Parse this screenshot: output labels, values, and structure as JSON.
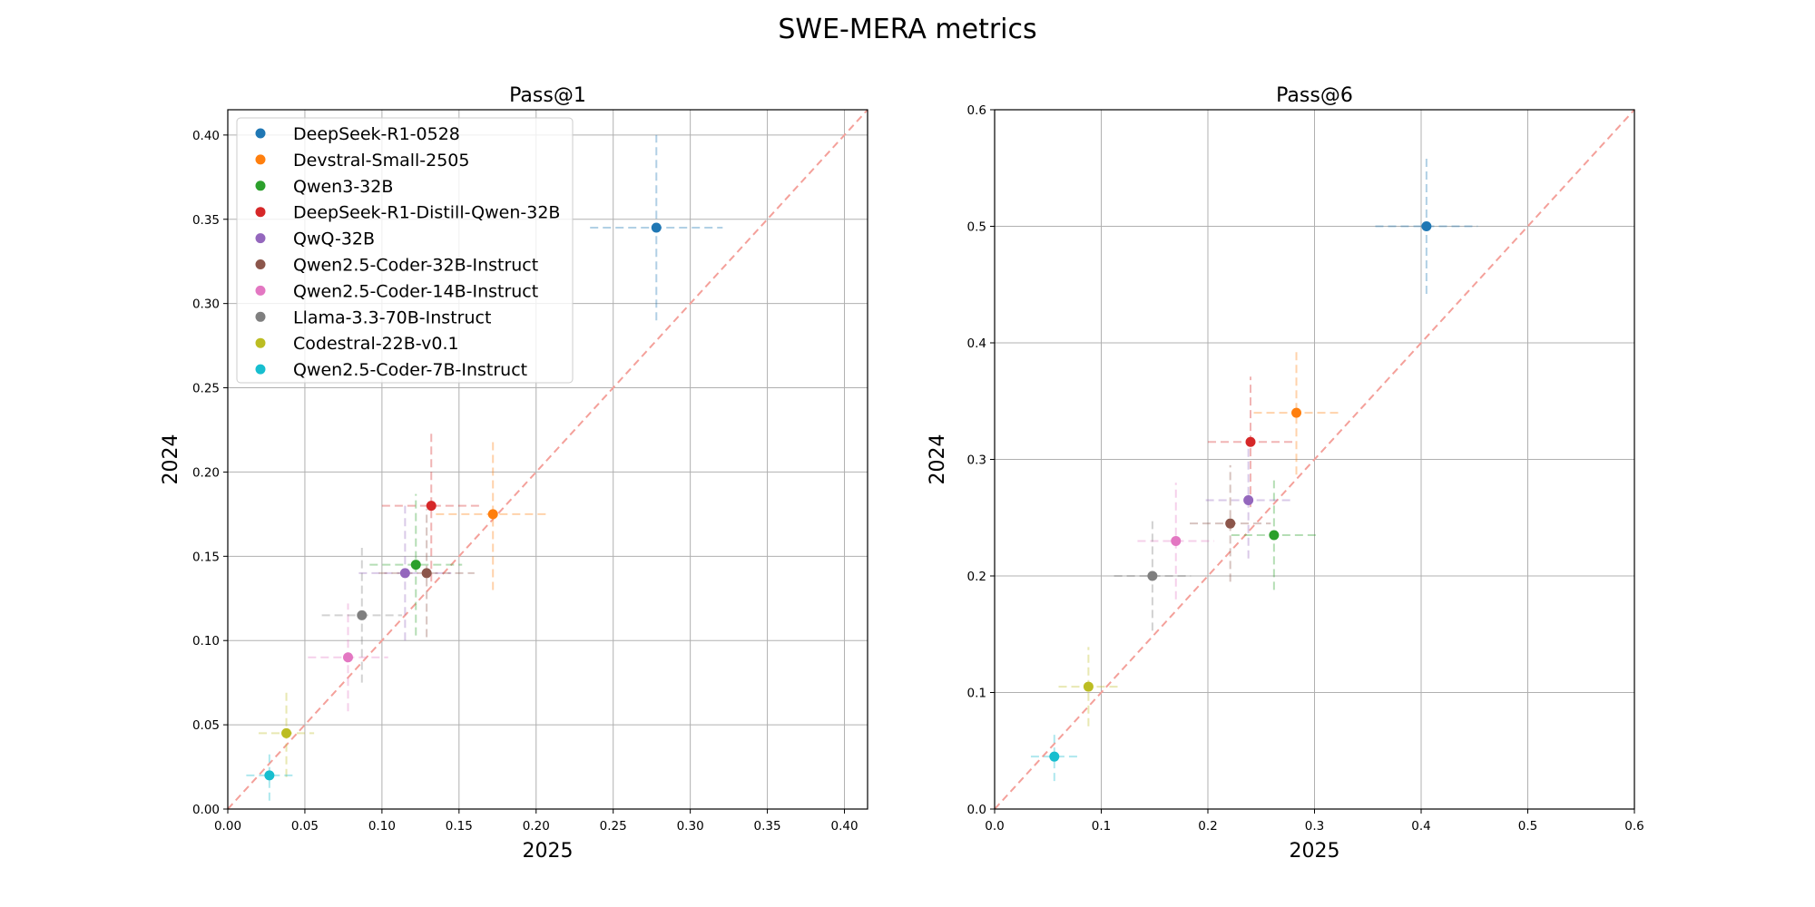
{
  "suptitle": "SWE-MERA metrics",
  "models": [
    {
      "name": "DeepSeek-R1-0528",
      "color": "#1f77b4"
    },
    {
      "name": "Devstral-Small-2505",
      "color": "#ff7f0e"
    },
    {
      "name": "Qwen3-32B",
      "color": "#2ca02c"
    },
    {
      "name": "DeepSeek-R1-Distill-Qwen-32B",
      "color": "#d62728"
    },
    {
      "name": "QwQ-32B",
      "color": "#9467bd"
    },
    {
      "name": "Qwen2.5-Coder-32B-Instruct",
      "color": "#8c564b"
    },
    {
      "name": "Qwen2.5-Coder-14B-Instruct",
      "color": "#e377c2"
    },
    {
      "name": "Llama-3.3-70B-Instruct",
      "color": "#7f7f7f"
    },
    {
      "name": "Codestral-22B-v0.1",
      "color": "#bcbd22"
    },
    {
      "name": "Qwen2.5-Coder-7B-Instruct",
      "color": "#17becf"
    }
  ],
  "chart_data": [
    {
      "type": "scatter",
      "title": "Pass@1",
      "xlabel": "2025",
      "ylabel": "2024",
      "xlim": [
        0,
        0.415
      ],
      "ylim": [
        0,
        0.415
      ],
      "xticks": [
        "0.00",
        "0.05",
        "0.10",
        "0.15",
        "0.20",
        "0.25",
        "0.30",
        "0.35",
        "0.40"
      ],
      "yticks": [
        "0.00",
        "0.05",
        "0.10",
        "0.15",
        "0.20",
        "0.25",
        "0.30",
        "0.35",
        "0.40"
      ],
      "grid": true,
      "diagonal": true,
      "legend": "top-left",
      "points": [
        {
          "model": "DeepSeek-R1-0528",
          "x": 0.278,
          "y": 0.345,
          "xerr": 0.043,
          "yerr": 0.055
        },
        {
          "model": "Devstral-Small-2505",
          "x": 0.172,
          "y": 0.175,
          "xerr": 0.037,
          "yerr": 0.045
        },
        {
          "model": "Qwen3-32B",
          "x": 0.122,
          "y": 0.145,
          "xerr": 0.03,
          "yerr": 0.042
        },
        {
          "model": "DeepSeek-R1-Distill-Qwen-32B",
          "x": 0.132,
          "y": 0.18,
          "xerr": 0.032,
          "yerr": 0.045
        },
        {
          "model": "QwQ-32B",
          "x": 0.115,
          "y": 0.14,
          "xerr": 0.03,
          "yerr": 0.04
        },
        {
          "model": "Qwen2.5-Coder-32B-Instruct",
          "x": 0.129,
          "y": 0.14,
          "xerr": 0.031,
          "yerr": 0.038
        },
        {
          "model": "Qwen2.5-Coder-14B-Instruct",
          "x": 0.078,
          "y": 0.09,
          "xerr": 0.026,
          "yerr": 0.032
        },
        {
          "model": "Llama-3.3-70B-Instruct",
          "x": 0.087,
          "y": 0.115,
          "xerr": 0.026,
          "yerr": 0.04
        },
        {
          "model": "Codestral-22B-v0.1",
          "x": 0.038,
          "y": 0.045,
          "xerr": 0.018,
          "yerr": 0.026
        },
        {
          "model": "Qwen2.5-Coder-7B-Instruct",
          "x": 0.027,
          "y": 0.02,
          "xerr": 0.015,
          "yerr": 0.015
        }
      ]
    },
    {
      "type": "scatter",
      "title": "Pass@6",
      "xlabel": "2025",
      "ylabel": "2024",
      "xlim": [
        0,
        0.6
      ],
      "ylim": [
        0,
        0.6
      ],
      "xticks": [
        "0.0",
        "0.1",
        "0.2",
        "0.3",
        "0.4",
        "0.5",
        "0.6"
      ],
      "yticks": [
        "0.0",
        "0.1",
        "0.2",
        "0.3",
        "0.4",
        "0.5",
        "0.6"
      ],
      "grid": true,
      "diagonal": true,
      "points": [
        {
          "model": "DeepSeek-R1-0528",
          "x": 0.405,
          "y": 0.5,
          "xerr": 0.048,
          "yerr": 0.058
        },
        {
          "model": "Devstral-Small-2505",
          "x": 0.283,
          "y": 0.34,
          "xerr": 0.04,
          "yerr": 0.053
        },
        {
          "model": "Qwen3-32B",
          "x": 0.262,
          "y": 0.235,
          "xerr": 0.04,
          "yerr": 0.047
        },
        {
          "model": "DeepSeek-R1-Distill-Qwen-32B",
          "x": 0.24,
          "y": 0.315,
          "xerr": 0.04,
          "yerr": 0.056
        },
        {
          "model": "QwQ-32B",
          "x": 0.238,
          "y": 0.265,
          "xerr": 0.04,
          "yerr": 0.05
        },
        {
          "model": "Qwen2.5-Coder-32B-Instruct",
          "x": 0.221,
          "y": 0.245,
          "xerr": 0.038,
          "yerr": 0.05
        },
        {
          "model": "Qwen2.5-Coder-14B-Instruct",
          "x": 0.17,
          "y": 0.23,
          "xerr": 0.036,
          "yerr": 0.05
        },
        {
          "model": "Llama-3.3-70B-Instruct",
          "x": 0.148,
          "y": 0.2,
          "xerr": 0.036,
          "yerr": 0.047
        },
        {
          "model": "Codestral-22B-v0.1",
          "x": 0.088,
          "y": 0.105,
          "xerr": 0.028,
          "yerr": 0.034
        },
        {
          "model": "Qwen2.5-Coder-7B-Instruct",
          "x": 0.056,
          "y": 0.045,
          "xerr": 0.022,
          "yerr": 0.021
        }
      ]
    }
  ]
}
